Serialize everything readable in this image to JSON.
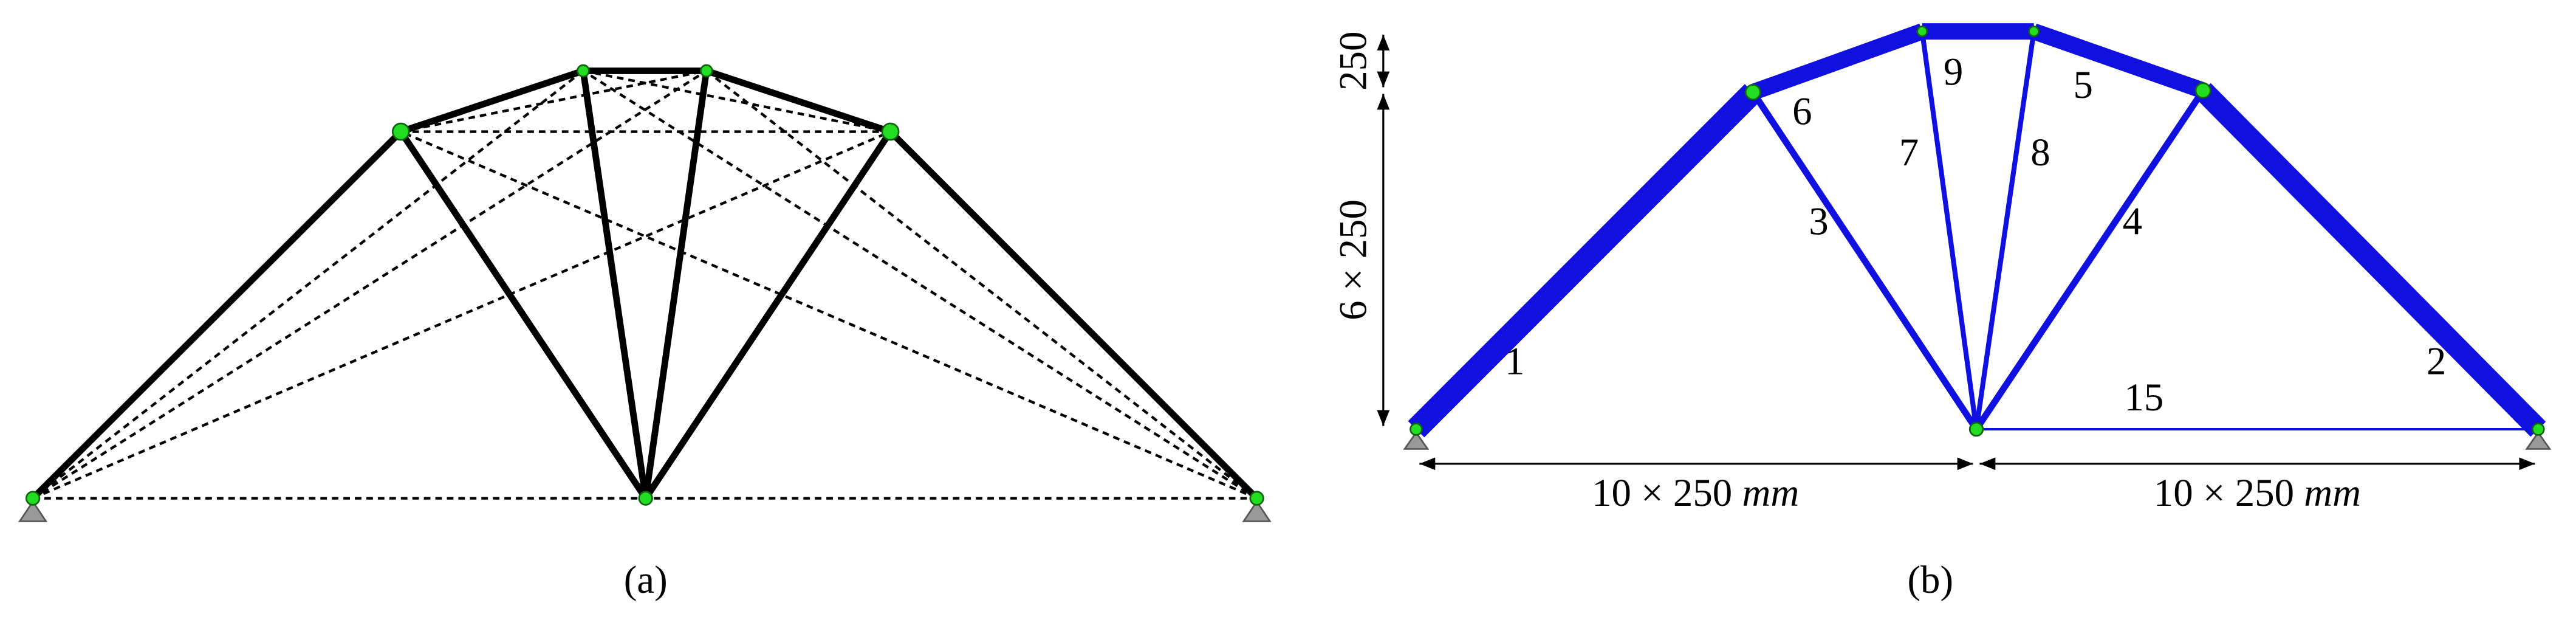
{
  "panels": {
    "a": {
      "caption": "(a)"
    },
    "b": {
      "caption": "(b)",
      "members": [
        "1",
        "2",
        "3",
        "4",
        "5",
        "6",
        "7",
        "8",
        "9",
        "15"
      ],
      "dimensions": {
        "top_height": "250",
        "height": "6 × 250",
        "left_span": {
          "value": "10 × 250",
          "unit": "mm"
        },
        "right_span": {
          "value": "10 × 250",
          "unit": "mm"
        }
      }
    }
  }
}
